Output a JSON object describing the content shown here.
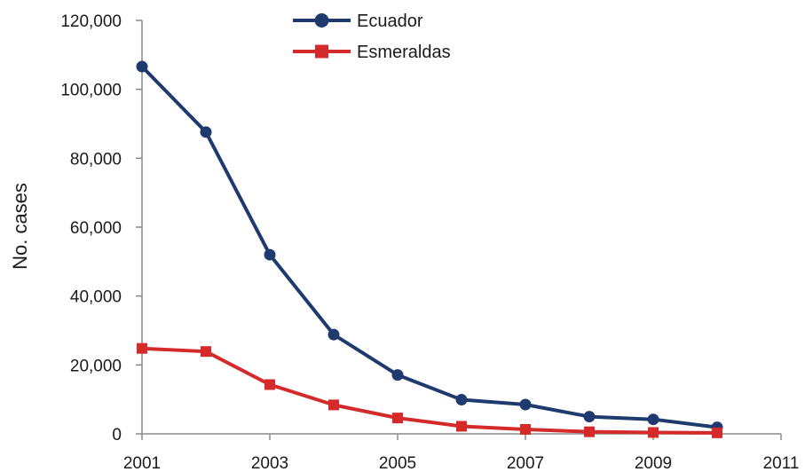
{
  "chart_data": {
    "type": "line",
    "title": "",
    "xlabel": "",
    "ylabel": "No. cases",
    "xlim": [
      2001,
      2011
    ],
    "ylim": [
      0,
      120000
    ],
    "x_ticks": [
      2001,
      2003,
      2005,
      2007,
      2009,
      2011
    ],
    "x_tick_labels": [
      "2001",
      "2003",
      "2005",
      "2007",
      "2009",
      "2011"
    ],
    "y_ticks": [
      0,
      20000,
      40000,
      60000,
      80000,
      100000,
      120000
    ],
    "y_tick_labels": [
      "0",
      "20,000",
      "40,000",
      "60,000",
      "80,000",
      "100,000",
      "120,000"
    ],
    "grid": false,
    "legend_position": "top-center",
    "x": [
      2001,
      2002,
      2003,
      2004,
      2005,
      2006,
      2007,
      2008,
      2009,
      2010
    ],
    "series": [
      {
        "name": "Ecuador",
        "color": "#1f3a6e",
        "marker": "circle",
        "values": [
          106600,
          87600,
          52000,
          28800,
          17100,
          9900,
          8500,
          5000,
          4200,
          1900
        ]
      },
      {
        "name": "Esmeraldas",
        "color": "#d42a2a",
        "marker": "square",
        "values": [
          24800,
          23900,
          14300,
          8400,
          4600,
          2200,
          1300,
          600,
          400,
          300
        ]
      }
    ]
  }
}
